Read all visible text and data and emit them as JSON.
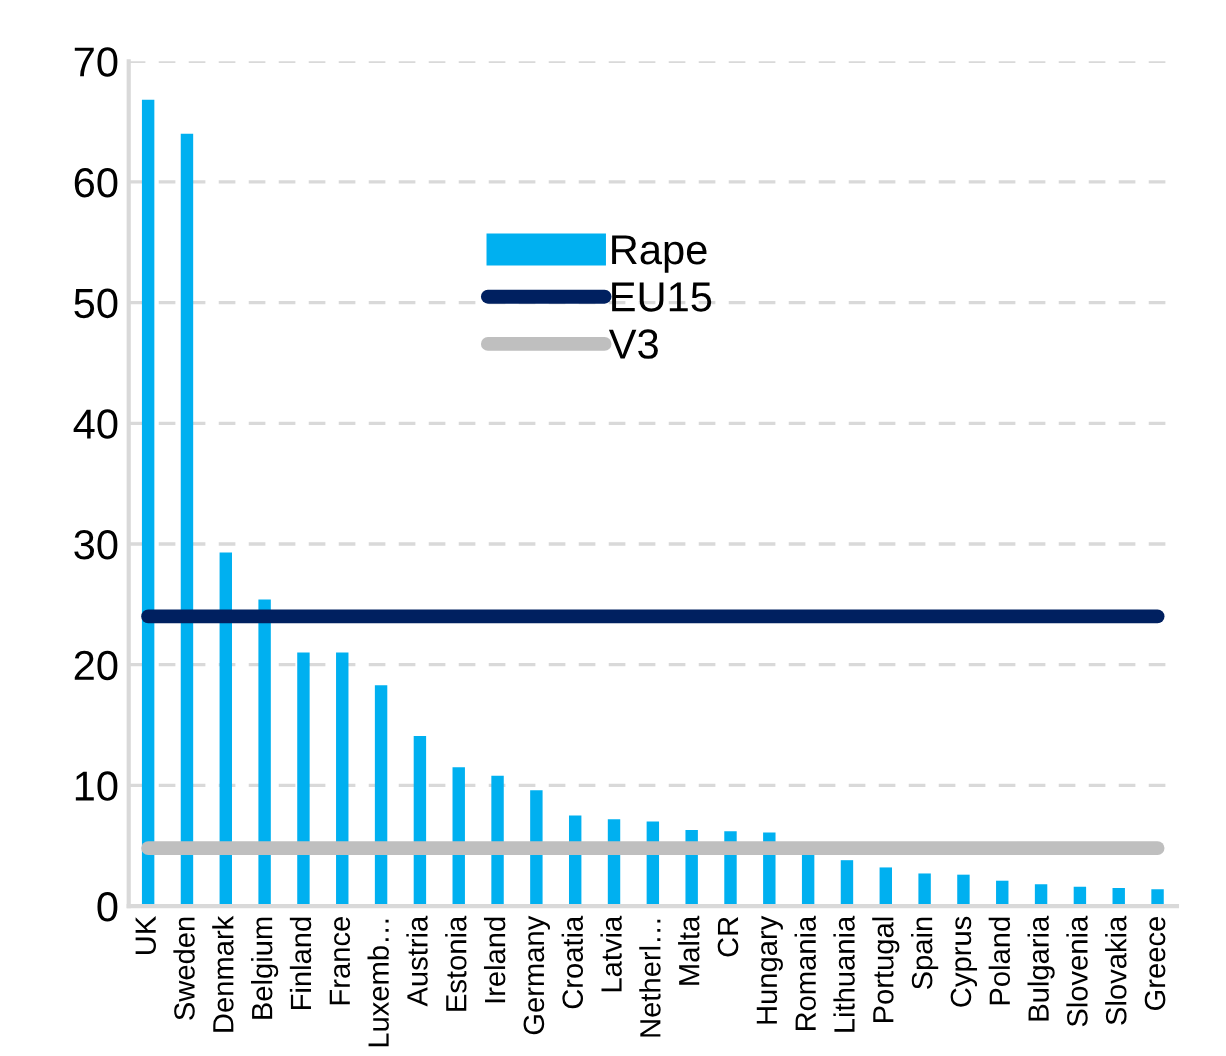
{
  "chart_data": {
    "type": "bar",
    "categories": [
      "UK",
      "Sweden",
      "Denmark",
      "Belgium",
      "Finland",
      "France",
      "Luxemb…",
      "Austria",
      "Estonia",
      "Ireland",
      "Germany",
      "Croatia",
      "Latvia",
      "Netherl…",
      "Malta",
      "CR",
      "Hungary",
      "Romania",
      "Lithuania",
      "Portugal",
      "Spain",
      "Cyprus",
      "Poland",
      "Bulgaria",
      "Slovenia",
      "Slovakia",
      "Greece"
    ],
    "series": [
      {
        "name": "Rape",
        "color": "#00b0f0",
        "values": [
          66.8,
          64.0,
          29.3,
          25.4,
          21.0,
          21.0,
          18.3,
          14.1,
          11.5,
          10.8,
          9.6,
          7.5,
          7.2,
          7.0,
          6.3,
          6.2,
          6.1,
          4.4,
          3.8,
          3.2,
          2.7,
          2.6,
          2.1,
          1.8,
          1.6,
          1.5,
          1.4
        ]
      },
      {
        "name": "EU15",
        "type": "line",
        "color": "#002060",
        "values": [
          24,
          24,
          24,
          24,
          24,
          24,
          24,
          24,
          24,
          24,
          24,
          24,
          24,
          24,
          24,
          24,
          24,
          24,
          24,
          24,
          24,
          24,
          24,
          24,
          24,
          24,
          24
        ]
      },
      {
        "name": "V3",
        "type": "line",
        "color": "#bfbfbf",
        "values": [
          4.8,
          4.8,
          4.8,
          4.8,
          4.8,
          4.8,
          4.8,
          4.8,
          4.8,
          4.8,
          4.8,
          4.8,
          4.8,
          4.8,
          4.8,
          4.8,
          4.8,
          4.8,
          4.8,
          4.8,
          4.8,
          4.8,
          4.8,
          4.8,
          4.8,
          4.8,
          4.8
        ]
      }
    ],
    "ylim": [
      0,
      70
    ],
    "yticks": [
      0,
      10,
      20,
      30,
      40,
      50,
      60,
      70
    ],
    "grid": "y",
    "legend": "top",
    "line_style": "solid",
    "marker": "none"
  }
}
